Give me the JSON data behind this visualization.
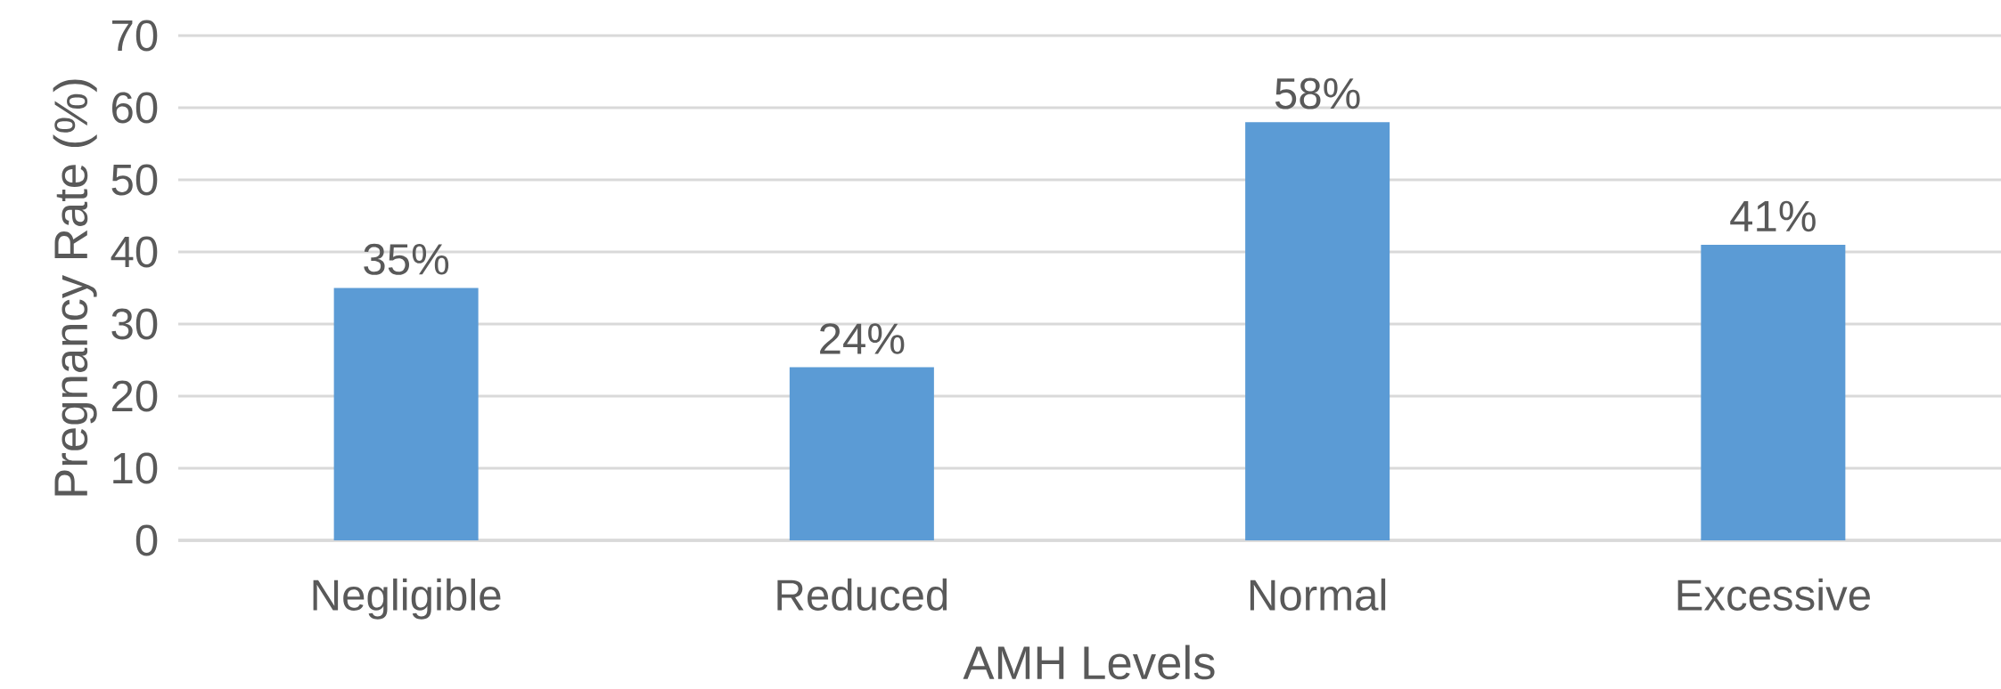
{
  "chart_data": {
    "type": "bar",
    "xlabel": "AMH Levels",
    "ylabel": "Pregnancy Rate (%)",
    "categories": [
      "Negligible",
      "Reduced",
      "Normal",
      "Excessive"
    ],
    "values": [
      35,
      24,
      58,
      41
    ],
    "value_labels": [
      "35%",
      "24%",
      "58%",
      "41%"
    ],
    "color": "#5b9bd5",
    "ylim": [
      0,
      70
    ],
    "yticks": [
      0,
      10,
      20,
      30,
      40,
      50,
      60,
      70
    ],
    "grid": "y"
  }
}
